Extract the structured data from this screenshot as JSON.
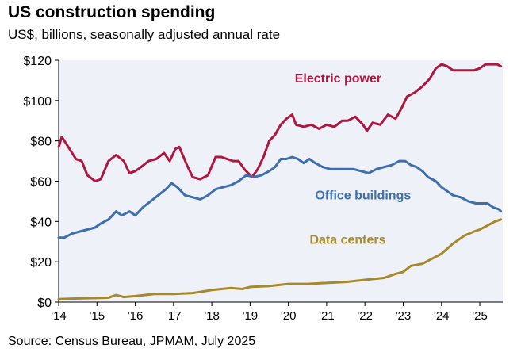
{
  "chart_data": {
    "type": "line",
    "title": "US construction spending",
    "subtitle": "US$, billions, seasonally adjusted annual rate",
    "source": "Source: Census Bureau, JPMAM, July 2025",
    "ylim": [
      0,
      120
    ],
    "xlim": [
      2014.0,
      2025.6
    ],
    "grid": false,
    "y_tick_labels": [
      "$0",
      "$20",
      "$40",
      "$60",
      "$80",
      "$100",
      "$120"
    ],
    "y_tick_values": [
      0,
      20,
      40,
      60,
      80,
      100,
      120
    ],
    "x_tick_labels": [
      "'14",
      "'15",
      "'16",
      "'17",
      "'18",
      "'19",
      "'20",
      "'21",
      "'22",
      "'23",
      "'24",
      "'25"
    ],
    "x_tick_values": [
      2014,
      2015,
      2016,
      2017,
      2018,
      2019,
      2020,
      2021,
      2022,
      2023,
      2024,
      2025
    ],
    "series": [
      {
        "name": "Electric power",
        "color": "#b0163e",
        "label_anchor": [
          2021.3,
          109
        ],
        "points": [
          [
            2014.0,
            77
          ],
          [
            2014.08,
            82
          ],
          [
            2014.25,
            77
          ],
          [
            2014.45,
            71
          ],
          [
            2014.6,
            70
          ],
          [
            2014.75,
            63
          ],
          [
            2014.95,
            60
          ],
          [
            2015.1,
            61
          ],
          [
            2015.3,
            70
          ],
          [
            2015.5,
            73
          ],
          [
            2015.7,
            70
          ],
          [
            2015.85,
            64
          ],
          [
            2016.0,
            65
          ],
          [
            2016.15,
            67
          ],
          [
            2016.35,
            70
          ],
          [
            2016.55,
            71
          ],
          [
            2016.75,
            74
          ],
          [
            2016.9,
            70
          ],
          [
            2017.05,
            76
          ],
          [
            2017.15,
            77
          ],
          [
            2017.35,
            68
          ],
          [
            2017.5,
            62
          ],
          [
            2017.7,
            61
          ],
          [
            2017.9,
            63
          ],
          [
            2018.1,
            72
          ],
          [
            2018.25,
            72
          ],
          [
            2018.4,
            71
          ],
          [
            2018.55,
            70
          ],
          [
            2018.7,
            70
          ],
          [
            2018.85,
            66
          ],
          [
            2019.05,
            62
          ],
          [
            2019.2,
            66
          ],
          [
            2019.35,
            72
          ],
          [
            2019.5,
            80
          ],
          [
            2019.65,
            83
          ],
          [
            2019.8,
            88
          ],
          [
            2019.95,
            91
          ],
          [
            2020.1,
            93
          ],
          [
            2020.2,
            88
          ],
          [
            2020.4,
            87
          ],
          [
            2020.6,
            88
          ],
          [
            2020.8,
            86
          ],
          [
            2021.0,
            88
          ],
          [
            2021.2,
            87
          ],
          [
            2021.4,
            90
          ],
          [
            2021.55,
            90
          ],
          [
            2021.75,
            92
          ],
          [
            2021.95,
            88
          ],
          [
            2022.05,
            85
          ],
          [
            2022.2,
            89
          ],
          [
            2022.4,
            88
          ],
          [
            2022.6,
            93
          ],
          [
            2022.8,
            91
          ],
          [
            2022.95,
            96
          ],
          [
            2023.1,
            102
          ],
          [
            2023.3,
            104
          ],
          [
            2023.5,
            107
          ],
          [
            2023.7,
            111
          ],
          [
            2023.85,
            116
          ],
          [
            2024.0,
            118
          ],
          [
            2024.15,
            117
          ],
          [
            2024.3,
            115
          ],
          [
            2024.5,
            115
          ],
          [
            2024.7,
            115
          ],
          [
            2024.85,
            115
          ],
          [
            2025.0,
            116
          ],
          [
            2025.15,
            118
          ],
          [
            2025.3,
            118
          ],
          [
            2025.45,
            118
          ],
          [
            2025.55,
            117
          ]
        ]
      },
      {
        "name": "Office buildings",
        "color": "#3d6fb0",
        "label_anchor": [
          2021.95,
          51
        ],
        "points": [
          [
            2014.0,
            32
          ],
          [
            2014.15,
            32
          ],
          [
            2014.35,
            34
          ],
          [
            2014.55,
            35
          ],
          [
            2014.75,
            36
          ],
          [
            2014.95,
            37
          ],
          [
            2015.1,
            39
          ],
          [
            2015.3,
            41
          ],
          [
            2015.5,
            45
          ],
          [
            2015.65,
            43
          ],
          [
            2015.85,
            45
          ],
          [
            2016.0,
            43
          ],
          [
            2016.2,
            47
          ],
          [
            2016.4,
            50
          ],
          [
            2016.6,
            53
          ],
          [
            2016.8,
            56
          ],
          [
            2016.95,
            59
          ],
          [
            2017.1,
            57
          ],
          [
            2017.3,
            53
          ],
          [
            2017.5,
            52
          ],
          [
            2017.7,
            51
          ],
          [
            2017.9,
            53
          ],
          [
            2018.1,
            56
          ],
          [
            2018.3,
            57
          ],
          [
            2018.5,
            58
          ],
          [
            2018.7,
            60
          ],
          [
            2018.9,
            63
          ],
          [
            2019.1,
            62
          ],
          [
            2019.3,
            63
          ],
          [
            2019.5,
            65
          ],
          [
            2019.65,
            67
          ],
          [
            2019.8,
            71
          ],
          [
            2019.95,
            71
          ],
          [
            2020.1,
            72
          ],
          [
            2020.25,
            71
          ],
          [
            2020.4,
            69
          ],
          [
            2020.55,
            71
          ],
          [
            2020.7,
            69
          ],
          [
            2020.9,
            67
          ],
          [
            2021.1,
            66
          ],
          [
            2021.3,
            66
          ],
          [
            2021.5,
            66
          ],
          [
            2021.7,
            66
          ],
          [
            2021.9,
            65
          ],
          [
            2022.1,
            64
          ],
          [
            2022.3,
            66
          ],
          [
            2022.5,
            67
          ],
          [
            2022.7,
            68
          ],
          [
            2022.9,
            70
          ],
          [
            2023.05,
            70
          ],
          [
            2023.2,
            68
          ],
          [
            2023.35,
            67
          ],
          [
            2023.5,
            65
          ],
          [
            2023.65,
            62
          ],
          [
            2023.85,
            60
          ],
          [
            2024.0,
            57
          ],
          [
            2024.15,
            55
          ],
          [
            2024.3,
            53
          ],
          [
            2024.5,
            52
          ],
          [
            2024.7,
            50
          ],
          [
            2024.9,
            49
          ],
          [
            2025.05,
            49
          ],
          [
            2025.2,
            49
          ],
          [
            2025.35,
            47
          ],
          [
            2025.5,
            46
          ],
          [
            2025.55,
            45
          ]
        ]
      },
      {
        "name": "Data centers",
        "color": "#a6892a",
        "label_anchor": [
          2021.55,
          29
        ],
        "points": [
          [
            2014.0,
            1.5
          ],
          [
            2014.5,
            1.8
          ],
          [
            2015.0,
            2
          ],
          [
            2015.3,
            2.2
          ],
          [
            2015.5,
            3.5
          ],
          [
            2015.7,
            2.5
          ],
          [
            2016.0,
            3
          ],
          [
            2016.5,
            4
          ],
          [
            2017.0,
            4
          ],
          [
            2017.5,
            4.5
          ],
          [
            2018.0,
            6
          ],
          [
            2018.5,
            7
          ],
          [
            2018.8,
            6.5
          ],
          [
            2019.0,
            7.5
          ],
          [
            2019.5,
            8
          ],
          [
            2020.0,
            9
          ],
          [
            2020.5,
            9
          ],
          [
            2021.0,
            9.5
          ],
          [
            2021.5,
            10
          ],
          [
            2022.0,
            11
          ],
          [
            2022.5,
            12
          ],
          [
            2022.8,
            14
          ],
          [
            2023.0,
            15
          ],
          [
            2023.2,
            18
          ],
          [
            2023.5,
            19
          ],
          [
            2023.8,
            22
          ],
          [
            2024.0,
            24
          ],
          [
            2024.3,
            29
          ],
          [
            2024.6,
            33
          ],
          [
            2024.85,
            35
          ],
          [
            2025.0,
            36
          ],
          [
            2025.2,
            38
          ],
          [
            2025.4,
            40
          ],
          [
            2025.55,
            41
          ]
        ]
      }
    ]
  }
}
